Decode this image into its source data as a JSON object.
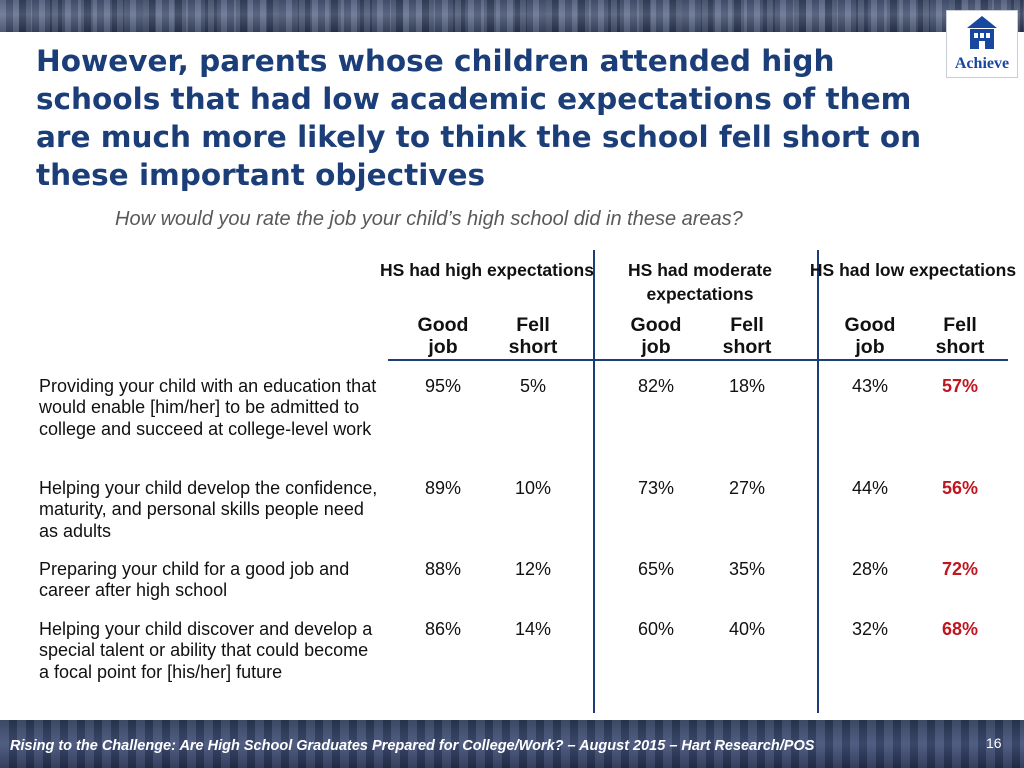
{
  "logo": {
    "text": "Achieve"
  },
  "title": "However, parents whose children attended high schools that had low academic expectations of them are much more likely to think the school fell short on these important objectives",
  "subtitle": "How would you rate the job your child’s high school did in these areas?",
  "chart_data": {
    "type": "table",
    "groups": [
      {
        "label": "HS had high expectations",
        "columns": [
          "Good job",
          "Fell short"
        ]
      },
      {
        "label": "HS had moderate expectations",
        "columns": [
          "Good job",
          "Fell short"
        ]
      },
      {
        "label": "HS had low expectations",
        "columns": [
          "Good job",
          "Fell short"
        ]
      }
    ],
    "rows": [
      {
        "label": "Providing your child with an education that would enable [him/her] to be admitted to college and succeed at college-level work",
        "values": [
          "95%",
          "5%",
          "82%",
          "18%",
          "43%",
          "57%"
        ]
      },
      {
        "label": "Helping your child develop the confidence, maturity, and personal skills people need as adults",
        "values": [
          "89%",
          "10%",
          "73%",
          "27%",
          "44%",
          "56%"
        ]
      },
      {
        "label": "Preparing your child for a good job and career after high school",
        "values": [
          "88%",
          "12%",
          "65%",
          "35%",
          "28%",
          "72%"
        ]
      },
      {
        "label": "Helping your child discover and develop a special talent or ability that could become a focal point for [his/her] future",
        "values": [
          "86%",
          "14%",
          "60%",
          "40%",
          "32%",
          "68%"
        ]
      }
    ],
    "highlight_column": 5,
    "highlight_color": "#c0161f"
  },
  "footer": {
    "text": "Rising to the Challenge:  Are High School Graduates Prepared for College/Work? – August 2015 – Hart Research/POS",
    "page_number": "16"
  }
}
